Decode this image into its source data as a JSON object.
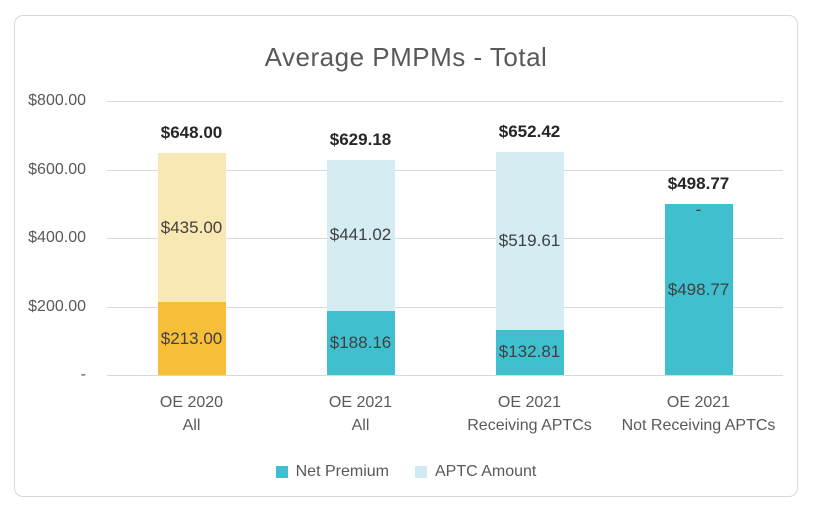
{
  "chart_data": {
    "type": "bar",
    "stacked": true,
    "title": "Average PMPMs - Total",
    "xlabel": "",
    "ylabel": "",
    "ylim": [
      0,
      800
    ],
    "grid": true,
    "legend_position": "bottom",
    "yticks": [
      {
        "value": 800,
        "label": "$800.00"
      },
      {
        "value": 600,
        "label": "$600.00"
      },
      {
        "value": 400,
        "label": "$400.00"
      },
      {
        "value": 200,
        "label": "$200.00"
      },
      {
        "value": 0,
        "label": "-"
      }
    ],
    "categories": [
      {
        "line1": "OE 2020",
        "line2": "All"
      },
      {
        "line1": "OE 2021",
        "line2": "All"
      },
      {
        "line1": "OE 2021",
        "line2": "Receiving APTCs"
      },
      {
        "line1": "OE 2021",
        "line2": "Not Receiving APTCs"
      }
    ],
    "series": [
      {
        "name": "Net Premium",
        "values": [
          213.0,
          188.16,
          132.81,
          498.77
        ],
        "labels": [
          "$213.00",
          "$188.16",
          "$132.81",
          "$498.77"
        ],
        "colors": [
          "#F6BE39",
          "#40C0CF",
          "#40C0CF",
          "#40C0CF"
        ]
      },
      {
        "name": "APTC Amount",
        "values": [
          435.0,
          441.02,
          519.61,
          0
        ],
        "labels": [
          "$435.00",
          "$441.02",
          "$519.61",
          "-"
        ],
        "colors": [
          "#FAE8B4",
          "#D4ECF2",
          "#D4ECF2",
          "#D4ECF2"
        ]
      }
    ],
    "totals": {
      "values": [
        648.0,
        629.18,
        652.42,
        498.77
      ],
      "labels": [
        "$648.00",
        "$629.18",
        "$652.42",
        "$498.77"
      ]
    },
    "legend": [
      {
        "label": "Net Premium",
        "color": "#40C0CF"
      },
      {
        "label": "APTC Amount",
        "color": "#CFEAF2"
      }
    ]
  }
}
